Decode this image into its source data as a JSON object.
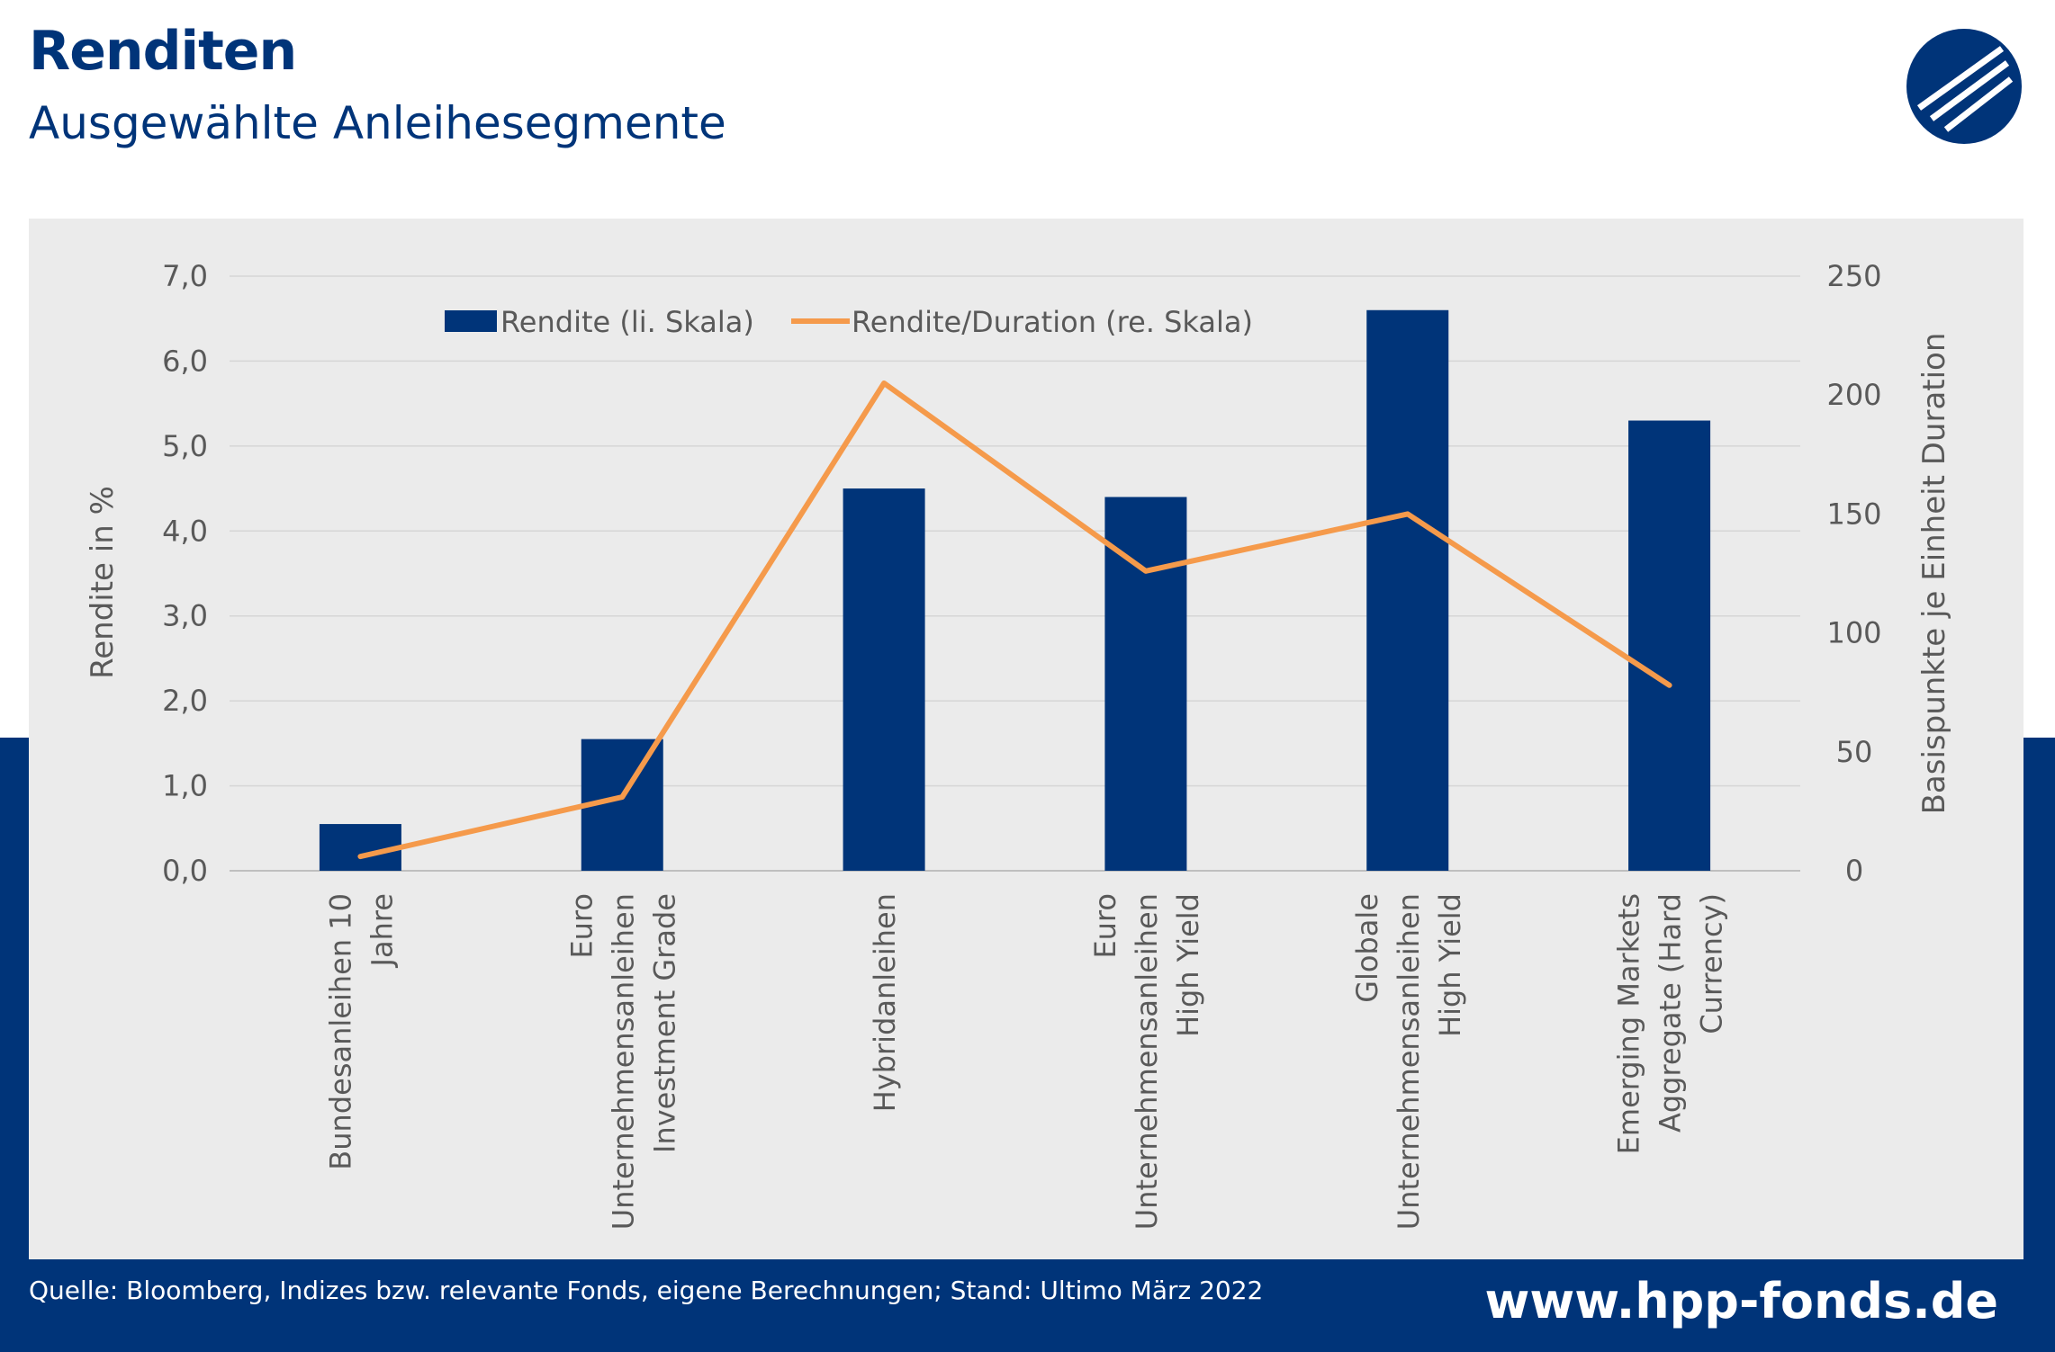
{
  "header": {
    "title": "Renditen",
    "subtitle": "Ausgewählte Anleihesegmente"
  },
  "logo": {
    "icon": "hpp-logo-icon"
  },
  "colors": {
    "brand_blue": "#003479",
    "bar": "#003479",
    "line": "#f59a4b",
    "panel": "#ebebeb",
    "grid": "#d6d6d6",
    "axis_text": "#595959"
  },
  "chart_data": {
    "type": "bar",
    "categories": [
      [
        "Bundesanleihen 10",
        "Jahre"
      ],
      [
        "Euro",
        "Unternehmensanleihen",
        "Investment Grade"
      ],
      [
        "Hybridanleihen"
      ],
      [
        "Euro",
        "Unternehmensanleihen",
        "High Yield"
      ],
      [
        "Globale",
        "Unternehmensanleihen",
        "High Yield"
      ],
      [
        "Emerging Markets",
        "Aggregate (Hard",
        "Currency)"
      ]
    ],
    "series": [
      {
        "name": "Rendite (li. Skala)",
        "type": "bar",
        "axis": "left",
        "values": [
          0.55,
          1.55,
          4.5,
          4.4,
          6.6,
          5.3
        ]
      },
      {
        "name": "Rendite/Duration (re. Skala)",
        "type": "line",
        "axis": "right",
        "values": [
          6,
          31,
          205,
          126,
          150,
          78
        ]
      }
    ],
    "ylabel": "Rendite in %",
    "ylabel_right": "Basispunkte je Einheit Duration",
    "ylim": [
      0,
      7
    ],
    "ylim_right": [
      0,
      250
    ],
    "yticks": [
      "0,0",
      "1,0",
      "2,0",
      "3,0",
      "4,0",
      "5,0",
      "6,0",
      "7,0"
    ],
    "yticks_values": [
      0,
      1,
      2,
      3,
      4,
      5,
      6,
      7
    ],
    "yticks_right": [
      "0",
      "50",
      "100",
      "150",
      "200",
      "250"
    ],
    "yticks_right_values": [
      0,
      50,
      100,
      150,
      200,
      250
    ],
    "grid": true,
    "legend_position": "top"
  },
  "footer": {
    "source": "Quelle: Bloomberg, Indizes bzw. relevante Fonds, eigene Berechnungen; Stand: Ultimo März 2022",
    "website": "www.hpp-fonds.de"
  }
}
